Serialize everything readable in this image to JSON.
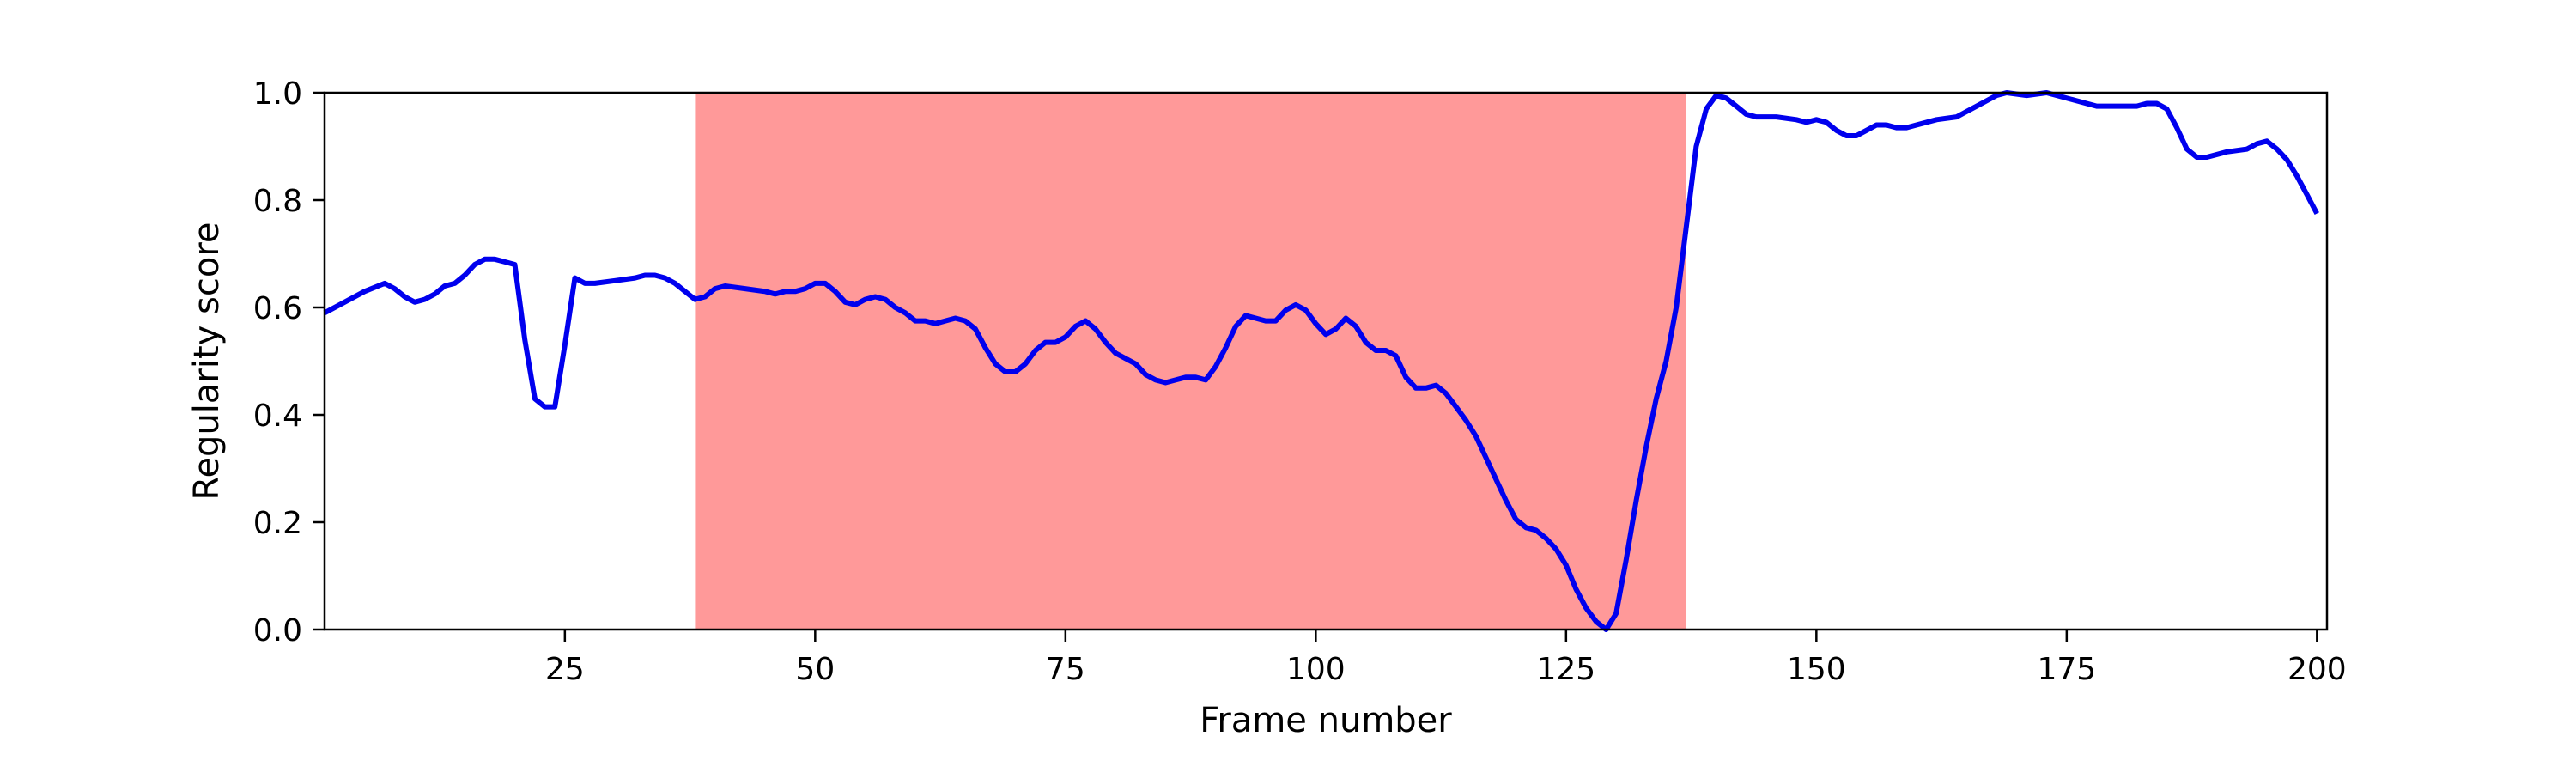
{
  "chart_data": {
    "type": "line",
    "title": "",
    "xlabel": "Frame number",
    "ylabel": "Regularity score",
    "xlim": [
      1,
      201
    ],
    "ylim": [
      0,
      1.0
    ],
    "xticks": [
      25,
      50,
      75,
      100,
      125,
      150,
      175,
      200
    ],
    "yticks": [
      "0.0",
      "0.2",
      "0.4",
      "0.6",
      "0.8",
      "1.0"
    ],
    "grid": false,
    "legend": "none",
    "highlight_region": {
      "x_start": 38,
      "x_end": 137,
      "color": "#ff9999"
    },
    "series": [
      {
        "color": "#0000ee",
        "points": [
          [
            1,
            0.59
          ],
          [
            3,
            0.61
          ],
          [
            5,
            0.63
          ],
          [
            7,
            0.645
          ],
          [
            8,
            0.635
          ],
          [
            9,
            0.62
          ],
          [
            10,
            0.61
          ],
          [
            11,
            0.615
          ],
          [
            12,
            0.625
          ],
          [
            13,
            0.64
          ],
          [
            14,
            0.645
          ],
          [
            15,
            0.66
          ],
          [
            16,
            0.68
          ],
          [
            17,
            0.69
          ],
          [
            18,
            0.69
          ],
          [
            19,
            0.685
          ],
          [
            20,
            0.68
          ],
          [
            21,
            0.54
          ],
          [
            22,
            0.43
          ],
          [
            23,
            0.415
          ],
          [
            24,
            0.415
          ],
          [
            25,
            0.53
          ],
          [
            26,
            0.655
          ],
          [
            27,
            0.645
          ],
          [
            28,
            0.645
          ],
          [
            30,
            0.65
          ],
          [
            32,
            0.655
          ],
          [
            33,
            0.66
          ],
          [
            34,
            0.66
          ],
          [
            35,
            0.655
          ],
          [
            36,
            0.645
          ],
          [
            37,
            0.63
          ],
          [
            38,
            0.615
          ],
          [
            39,
            0.62
          ],
          [
            40,
            0.635
          ],
          [
            41,
            0.64
          ],
          [
            43,
            0.635
          ],
          [
            45,
            0.63
          ],
          [
            46,
            0.625
          ],
          [
            47,
            0.63
          ],
          [
            48,
            0.63
          ],
          [
            49,
            0.635
          ],
          [
            50,
            0.645
          ],
          [
            51,
            0.645
          ],
          [
            52,
            0.63
          ],
          [
            53,
            0.61
          ],
          [
            54,
            0.605
          ],
          [
            55,
            0.615
          ],
          [
            56,
            0.62
          ],
          [
            57,
            0.615
          ],
          [
            58,
            0.6
          ],
          [
            59,
            0.59
          ],
          [
            60,
            0.575
          ],
          [
            61,
            0.575
          ],
          [
            62,
            0.57
          ],
          [
            63,
            0.575
          ],
          [
            64,
            0.58
          ],
          [
            65,
            0.575
          ],
          [
            66,
            0.56
          ],
          [
            67,
            0.525
          ],
          [
            68,
            0.495
          ],
          [
            69,
            0.48
          ],
          [
            70,
            0.48
          ],
          [
            71,
            0.495
          ],
          [
            72,
            0.52
          ],
          [
            73,
            0.535
          ],
          [
            74,
            0.535
          ],
          [
            75,
            0.545
          ],
          [
            76,
            0.565
          ],
          [
            77,
            0.575
          ],
          [
            78,
            0.56
          ],
          [
            79,
            0.535
          ],
          [
            80,
            0.515
          ],
          [
            81,
            0.505
          ],
          [
            82,
            0.495
          ],
          [
            83,
            0.475
          ],
          [
            84,
            0.465
          ],
          [
            85,
            0.46
          ],
          [
            86,
            0.465
          ],
          [
            87,
            0.47
          ],
          [
            88,
            0.47
          ],
          [
            89,
            0.465
          ],
          [
            90,
            0.49
          ],
          [
            91,
            0.525
          ],
          [
            92,
            0.565
          ],
          [
            93,
            0.585
          ],
          [
            94,
            0.58
          ],
          [
            95,
            0.575
          ],
          [
            96,
            0.575
          ],
          [
            97,
            0.595
          ],
          [
            98,
            0.605
          ],
          [
            99,
            0.595
          ],
          [
            100,
            0.57
          ],
          [
            101,
            0.55
          ],
          [
            102,
            0.56
          ],
          [
            103,
            0.58
          ],
          [
            104,
            0.565
          ],
          [
            105,
            0.535
          ],
          [
            106,
            0.52
          ],
          [
            107,
            0.52
          ],
          [
            108,
            0.51
          ],
          [
            109,
            0.47
          ],
          [
            110,
            0.45
          ],
          [
            111,
            0.45
          ],
          [
            112,
            0.455
          ],
          [
            113,
            0.44
          ],
          [
            114,
            0.415
          ],
          [
            115,
            0.39
          ],
          [
            116,
            0.36
          ],
          [
            117,
            0.32
          ],
          [
            118,
            0.28
          ],
          [
            119,
            0.24
          ],
          [
            120,
            0.205
          ],
          [
            121,
            0.19
          ],
          [
            122,
            0.185
          ],
          [
            123,
            0.17
          ],
          [
            124,
            0.15
          ],
          [
            125,
            0.12
          ],
          [
            126,
            0.075
          ],
          [
            127,
            0.04
          ],
          [
            128,
            0.015
          ],
          [
            129,
            0.0
          ],
          [
            130,
            0.03
          ],
          [
            131,
            0.13
          ],
          [
            132,
            0.24
          ],
          [
            133,
            0.34
          ],
          [
            134,
            0.43
          ],
          [
            135,
            0.5
          ],
          [
            136,
            0.6
          ],
          [
            137,
            0.75
          ],
          [
            138,
            0.9
          ],
          [
            139,
            0.97
          ],
          [
            140,
            0.995
          ],
          [
            141,
            0.99
          ],
          [
            142,
            0.975
          ],
          [
            143,
            0.96
          ],
          [
            144,
            0.955
          ],
          [
            146,
            0.955
          ],
          [
            148,
            0.95
          ],
          [
            149,
            0.945
          ],
          [
            150,
            0.95
          ],
          [
            151,
            0.945
          ],
          [
            152,
            0.93
          ],
          [
            153,
            0.92
          ],
          [
            154,
            0.92
          ],
          [
            155,
            0.93
          ],
          [
            156,
            0.94
          ],
          [
            157,
            0.94
          ],
          [
            158,
            0.935
          ],
          [
            159,
            0.935
          ],
          [
            160,
            0.94
          ],
          [
            162,
            0.95
          ],
          [
            164,
            0.955
          ],
          [
            166,
            0.975
          ],
          [
            168,
            0.995
          ],
          [
            169,
            1.0
          ],
          [
            171,
            0.995
          ],
          [
            173,
            1.0
          ],
          [
            174,
            0.995
          ],
          [
            176,
            0.985
          ],
          [
            178,
            0.975
          ],
          [
            180,
            0.975
          ],
          [
            182,
            0.975
          ],
          [
            183,
            0.98
          ],
          [
            184,
            0.98
          ],
          [
            185,
            0.97
          ],
          [
            186,
            0.935
          ],
          [
            187,
            0.895
          ],
          [
            188,
            0.88
          ],
          [
            189,
            0.88
          ],
          [
            191,
            0.89
          ],
          [
            193,
            0.895
          ],
          [
            194,
            0.905
          ],
          [
            195,
            0.91
          ],
          [
            196,
            0.895
          ],
          [
            197,
            0.875
          ],
          [
            198,
            0.845
          ],
          [
            199,
            0.81
          ],
          [
            200,
            0.775
          ]
        ]
      }
    ]
  }
}
